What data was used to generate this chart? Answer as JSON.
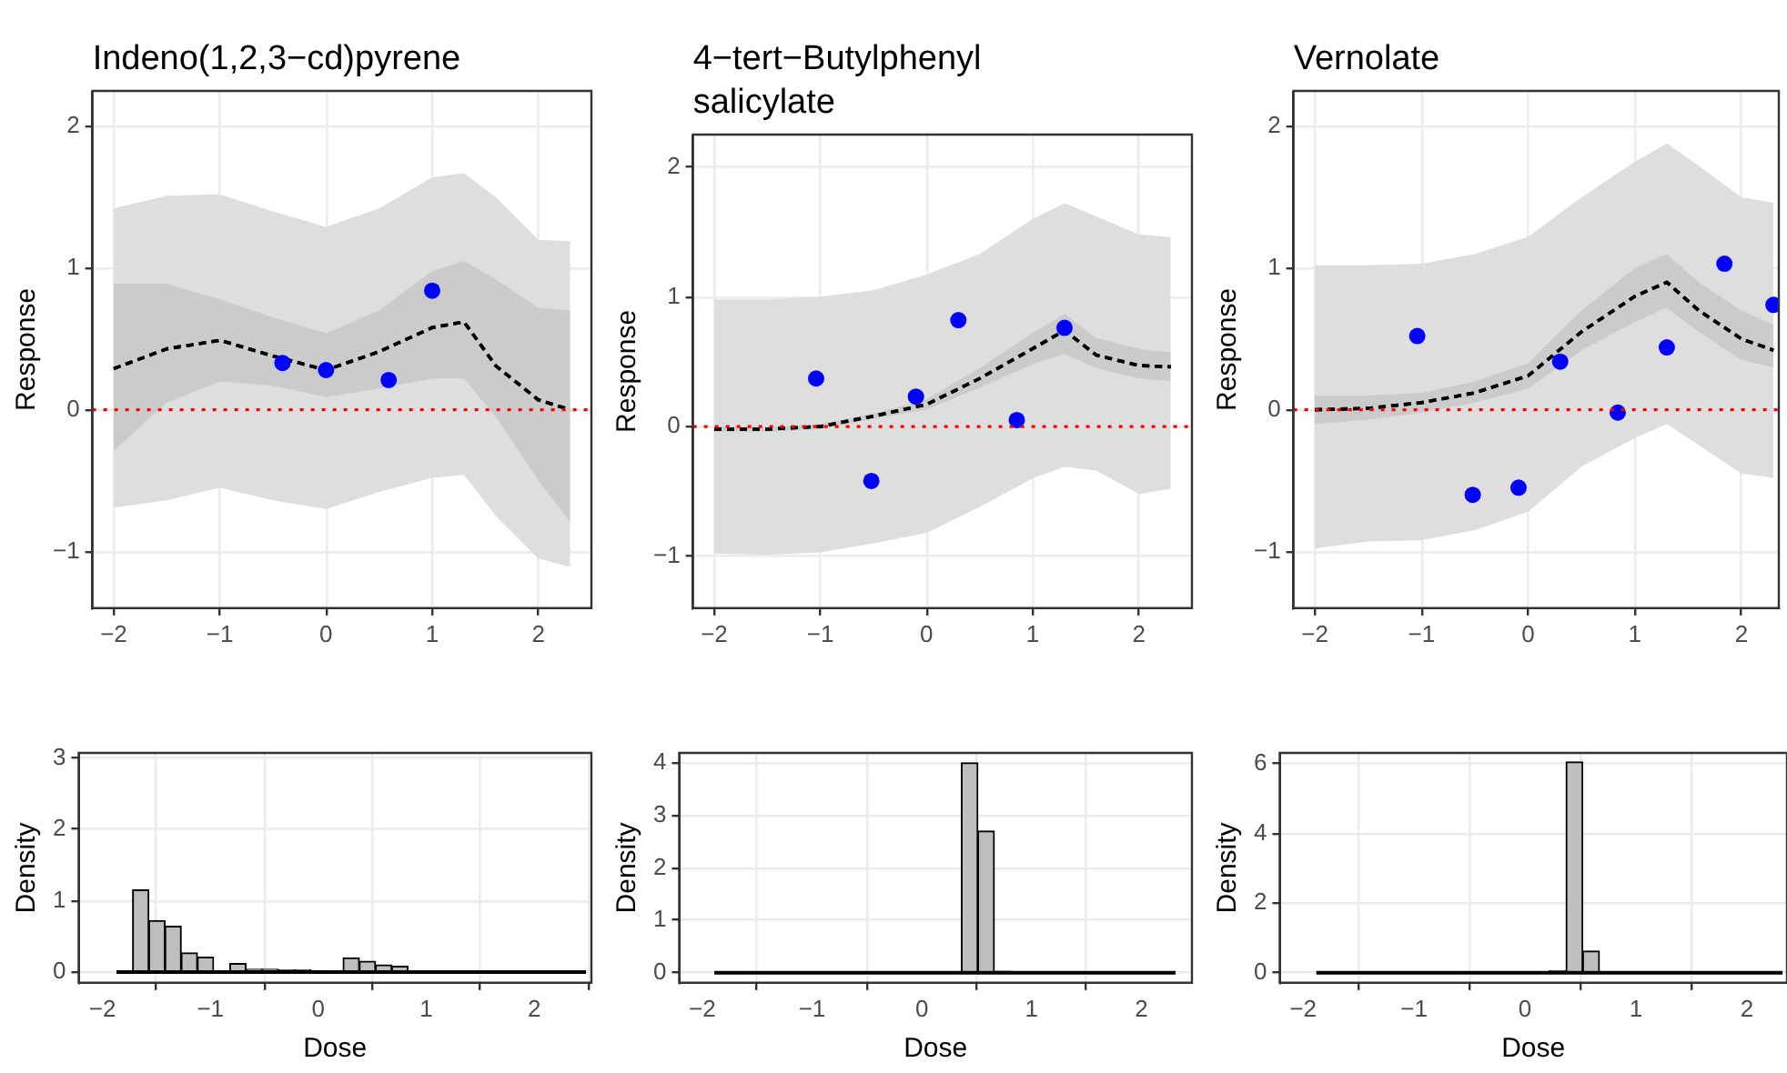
{
  "chart_data": [
    {
      "type": "line",
      "title": "Indeno(1,2,3−cd)pyrene",
      "ylabel": "Response",
      "xlim": [
        -2.2,
        2.5
      ],
      "ylim": [
        -1.4,
        2.25
      ],
      "xticks": [
        -2,
        -1,
        0,
        1,
        2
      ],
      "yticks": [
        -1,
        0,
        1,
        2
      ],
      "grid": true,
      "ref_lines": [
        {
          "axis": "y",
          "value": 0,
          "color": "#ff0000",
          "line_style": "dotted"
        }
      ],
      "series": [
        {
          "type": "line",
          "color": "#000000",
          "line_style": "dashed",
          "marker": "none",
          "x": [
            -2,
            -1.5,
            -1,
            -0.5,
            0,
            0.5,
            1,
            1.3,
            1.6,
            2,
            2.3
          ],
          "values": [
            0.29,
            0.43,
            0.49,
            0.38,
            0.28,
            0.41,
            0.58,
            0.62,
            0.31,
            0.07,
            0.0
          ],
          "lower": [
            -0.69,
            -0.64,
            -0.55,
            -0.64,
            -0.7,
            -0.58,
            -0.48,
            -0.46,
            -0.75,
            -1.05,
            -1.11
          ],
          "upper": [
            1.42,
            1.51,
            1.52,
            1.4,
            1.29,
            1.42,
            1.64,
            1.67,
            1.5,
            1.2,
            1.19
          ]
        },
        {
          "type": "line",
          "color": "#000000",
          "line_style": "dashed",
          "marker": "none",
          "x": [
            -2,
            -1.5,
            -1,
            -0.5,
            0,
            0.5,
            1,
            1.3,
            1.6,
            2,
            2.3
          ],
          "values": [
            0.29,
            0.43,
            0.49,
            0.38,
            0.28,
            0.41,
            0.58,
            0.62,
            0.31,
            0.07,
            0.0
          ],
          "lower": [
            -0.29,
            0.05,
            0.2,
            0.17,
            0.09,
            0.15,
            0.22,
            0.22,
            -0.05,
            -0.5,
            -0.79
          ],
          "upper": [
            0.89,
            0.89,
            0.78,
            0.65,
            0.54,
            0.7,
            0.98,
            1.05,
            0.92,
            0.72,
            0.7
          ]
        },
        {
          "type": "scatter",
          "color": "#0000ff",
          "marker": "circle",
          "x": [
            -0.41,
            0,
            0.59,
            1.0
          ],
          "values": [
            0.33,
            0.28,
            0.21,
            0.84
          ]
        }
      ]
    },
    {
      "type": "line",
      "title": "4−tert−Butylphenyl\nsalicylate",
      "ylabel": "Response",
      "xlim": [
        -2.2,
        2.5
      ],
      "ylim": [
        -1.4,
        2.25
      ],
      "xticks": [
        -2,
        -1,
        0,
        1,
        2
      ],
      "yticks": [
        -1,
        0,
        1,
        2
      ],
      "grid": true,
      "ref_lines": [
        {
          "axis": "y",
          "value": 0,
          "color": "#ff0000",
          "line_style": "dotted"
        }
      ],
      "series": [
        {
          "type": "line",
          "color": "#000000",
          "line_style": "dashed",
          "marker": "none",
          "x": [
            -2,
            -1.5,
            -1,
            -0.5,
            0,
            0.5,
            1,
            1.3,
            1.6,
            2,
            2.3
          ],
          "values": [
            -0.02,
            -0.02,
            0.0,
            0.08,
            0.17,
            0.37,
            0.6,
            0.74,
            0.55,
            0.47,
            0.46
          ],
          "lower": [
            -0.98,
            -0.99,
            -0.97,
            -0.9,
            -0.82,
            -0.62,
            -0.4,
            -0.31,
            -0.34,
            -0.52,
            -0.48
          ],
          "upper": [
            0.98,
            0.98,
            1.0,
            1.05,
            1.17,
            1.33,
            1.6,
            1.72,
            1.62,
            1.48,
            1.46
          ]
        },
        {
          "type": "line",
          "color": "#000000",
          "line_style": "dashed",
          "marker": "none",
          "x": [
            -2,
            -1.5,
            -1,
            -0.5,
            0,
            0.5,
            1,
            1.3,
            1.6,
            2,
            2.3
          ],
          "values": [
            -0.02,
            -0.02,
            0.0,
            0.08,
            0.17,
            0.37,
            0.6,
            0.74,
            0.55,
            0.47,
            0.46
          ],
          "lower": [
            -0.04,
            -0.04,
            -0.02,
            0.06,
            0.13,
            0.3,
            0.48,
            0.56,
            0.45,
            0.37,
            0.35
          ],
          "upper": [
            0.0,
            -0.01,
            0.02,
            0.1,
            0.21,
            0.45,
            0.72,
            0.87,
            0.68,
            0.6,
            0.57
          ]
        },
        {
          "type": "scatter",
          "color": "#0000ff",
          "marker": "circle",
          "x": [
            -1.04,
            -0.52,
            -0.1,
            0.3,
            0.85,
            1.3
          ],
          "values": [
            0.37,
            -0.42,
            0.23,
            0.82,
            0.05,
            0.76
          ]
        }
      ]
    },
    {
      "type": "line",
      "title": "Vernolate",
      "ylabel": "Response",
      "xlim": [
        -2.2,
        2.35
      ],
      "ylim": [
        -1.4,
        2.25
      ],
      "xticks": [
        -2,
        -1,
        0,
        1,
        2
      ],
      "yticks": [
        -1,
        0,
        1,
        2
      ],
      "grid": true,
      "ref_lines": [
        {
          "axis": "y",
          "value": 0,
          "color": "#ff0000",
          "line_style": "dotted"
        }
      ],
      "series": [
        {
          "type": "line",
          "color": "#000000",
          "line_style": "dashed",
          "marker": "none",
          "x": [
            -2,
            -1.5,
            -1,
            -0.5,
            0,
            0.5,
            1,
            1.3,
            1.6,
            2,
            2.3
          ],
          "values": [
            0.0,
            0.01,
            0.05,
            0.12,
            0.24,
            0.55,
            0.8,
            0.9,
            0.7,
            0.5,
            0.42
          ],
          "lower": [
            -0.98,
            -0.93,
            -0.92,
            -0.85,
            -0.72,
            -0.4,
            -0.2,
            -0.1,
            -0.25,
            -0.45,
            -0.48
          ],
          "upper": [
            1.02,
            1.02,
            1.03,
            1.1,
            1.22,
            1.5,
            1.75,
            1.88,
            1.72,
            1.5,
            1.46
          ]
        },
        {
          "type": "line",
          "color": "#000000",
          "line_style": "dashed",
          "marker": "none",
          "x": [
            -2,
            -1.5,
            -1,
            -0.5,
            0,
            0.5,
            1,
            1.3,
            1.6,
            2,
            2.3
          ],
          "values": [
            0.0,
            0.01,
            0.05,
            0.12,
            0.24,
            0.55,
            0.8,
            0.9,
            0.7,
            0.5,
            0.42
          ],
          "lower": [
            -0.1,
            -0.07,
            -0.02,
            0.05,
            0.15,
            0.42,
            0.62,
            0.72,
            0.55,
            0.35,
            0.3
          ],
          "upper": [
            0.1,
            0.1,
            0.12,
            0.2,
            0.33,
            0.7,
            1.0,
            1.1,
            0.9,
            0.7,
            0.6
          ]
        },
        {
          "type": "scatter",
          "color": "#0000ff",
          "marker": "circle",
          "x": [
            -1.04,
            -0.52,
            -0.09,
            0.3,
            0.84,
            1.3,
            1.84,
            2.3
          ],
          "values": [
            0.52,
            -0.6,
            -0.55,
            0.34,
            -0.02,
            0.44,
            1.03,
            0.74
          ]
        }
      ]
    },
    {
      "type": "histogram",
      "xlabel": "Dose",
      "ylabel": "Density",
      "color": "#bebebe",
      "xlim": [
        -2.22,
        2.53
      ],
      "ylim": [
        -0.15,
        3.07
      ],
      "xticks": [
        -2,
        -1,
        0,
        1,
        2
      ],
      "yticks": [
        0,
        1,
        2,
        3
      ],
      "grid": true,
      "bins": [
        -1.87,
        -1.72,
        -1.57,
        -1.42,
        -1.27,
        -1.12,
        -0.97,
        -0.82,
        -0.67,
        -0.52,
        -0.37,
        -0.22,
        -0.07,
        0.08,
        0.23,
        0.38,
        0.53,
        0.68,
        0.83,
        0.98,
        1.13,
        1.28,
        1.43,
        1.58,
        1.73,
        1.88,
        2.03,
        2.18,
        2.33,
        2.48
      ],
      "values": [
        0,
        1.15,
        0.72,
        0.64,
        0.27,
        0.21,
        0,
        0.12,
        0.04,
        0.04,
        0.03,
        0.03,
        0.02,
        0,
        0.2,
        0.15,
        0.1,
        0.08,
        0.01,
        0,
        0,
        0,
        0,
        0,
        0,
        0,
        0,
        0,
        0
      ]
    },
    {
      "type": "histogram",
      "xlabel": "Dose",
      "ylabel": "Density",
      "color": "#bebebe",
      "xlim": [
        -2.21,
        2.46
      ],
      "ylim": [
        -0.19,
        4.19
      ],
      "xticks": [
        -2,
        -1,
        0,
        1,
        2
      ],
      "yticks": [
        0,
        1,
        2,
        3,
        4
      ],
      "grid": true,
      "bins": [
        -1.89,
        -1.74,
        -1.59,
        -1.44,
        -1.29,
        -1.14,
        -0.99,
        -0.84,
        -0.69,
        -0.54,
        -0.39,
        -0.24,
        -0.09,
        0.06,
        0.21,
        0.36,
        0.51,
        0.66,
        0.81,
        0.96,
        1.11,
        1.26,
        1.41,
        1.56,
        1.71,
        1.86,
        2.01,
        2.16,
        2.31
      ],
      "values": [
        0,
        0,
        0,
        0,
        0,
        0,
        0,
        0,
        0,
        0,
        0,
        0,
        0,
        0,
        0,
        4.0,
        2.7,
        0.03,
        0,
        0,
        0,
        0,
        0,
        0,
        0,
        0,
        0,
        0
      ]
    },
    {
      "type": "histogram",
      "xlabel": "Dose",
      "ylabel": "Density",
      "color": "#bebebe",
      "xlim": [
        -2.21,
        2.36
      ],
      "ylim": [
        -0.29,
        6.31
      ],
      "xticks": [
        -2,
        -1,
        0,
        1,
        2
      ],
      "yticks": [
        0,
        2,
        4,
        6
      ],
      "grid": true,
      "bins": [
        -1.88,
        -1.73,
        -1.58,
        -1.43,
        -1.28,
        -1.13,
        -0.98,
        -0.83,
        -0.68,
        -0.53,
        -0.38,
        -0.23,
        -0.08,
        0.07,
        0.22,
        0.37,
        0.52,
        0.67,
        0.82,
        0.97,
        1.12,
        1.27,
        1.42,
        1.57,
        1.72,
        1.87,
        2.02,
        2.17,
        2.32
      ],
      "values": [
        0,
        0,
        0,
        0,
        0,
        0,
        0,
        0,
        0,
        0,
        0,
        0,
        0,
        0,
        0.05,
        6.05,
        0.62,
        0,
        0,
        0,
        0,
        0,
        0,
        0,
        0,
        0,
        0,
        0
      ]
    }
  ]
}
